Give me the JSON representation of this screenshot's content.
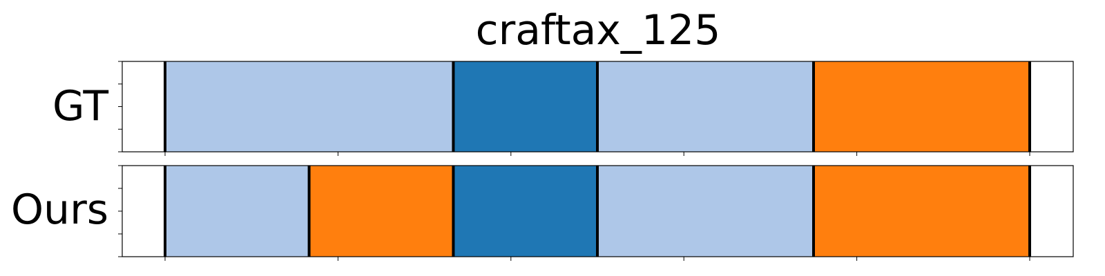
{
  "chart_data": {
    "type": "segmentation_timeline",
    "title": "craftax_125",
    "xlim": [
      -0.5,
      5.0
    ],
    "x_ticks": [
      0,
      1,
      2,
      3,
      4,
      5
    ],
    "tick_labels_shown": false,
    "colors": {
      "light_blue": "#aec7e8",
      "blue": "#1f77b4",
      "orange": "#ff7f0e",
      "boundary": "#000000"
    },
    "rows": [
      {
        "label": "GT",
        "segments": [
          {
            "start": 0.0,
            "end": 1.667,
            "color": "light_blue"
          },
          {
            "start": 1.667,
            "end": 2.5,
            "color": "blue"
          },
          {
            "start": 2.5,
            "end": 3.75,
            "color": "light_blue"
          },
          {
            "start": 3.75,
            "end": 5.0,
            "color": "orange"
          }
        ],
        "boundaries": [
          0.0,
          1.667,
          2.5,
          3.75,
          5.0
        ]
      },
      {
        "label": "Ours",
        "segments": [
          {
            "start": 0.0,
            "end": 0.833,
            "color": "light_blue"
          },
          {
            "start": 0.833,
            "end": 1.667,
            "color": "orange"
          },
          {
            "start": 1.667,
            "end": 2.5,
            "color": "blue"
          },
          {
            "start": 2.5,
            "end": 3.75,
            "color": "light_blue"
          },
          {
            "start": 3.75,
            "end": 5.0,
            "color": "orange"
          }
        ],
        "boundaries": [
          0.0,
          0.833,
          1.667,
          2.5,
          3.75,
          5.0
        ]
      }
    ]
  }
}
